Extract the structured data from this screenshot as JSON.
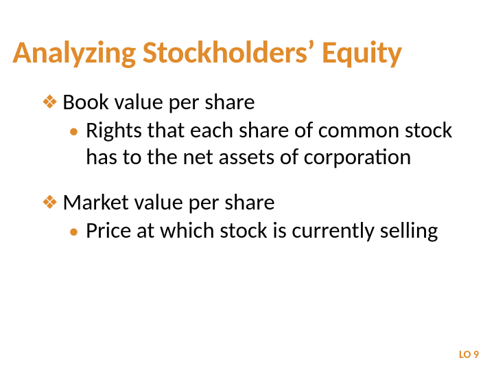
{
  "colors": {
    "accent": "#e08b2c",
    "text": "#000000",
    "background": "#ffffff"
  },
  "typography": {
    "title_fontsize": 46,
    "body_fontsize": 33,
    "footer_fontsize": 16,
    "title_weight": 700,
    "body_weight": 400,
    "footer_weight": 700,
    "font_family": "Calibri"
  },
  "title": "Analyzing Stockholders’ Equity",
  "items": [
    {
      "heading": "Book value per share",
      "sub": "Rights that each share of common stock has to the net assets of corporation"
    },
    {
      "heading": "Market value per share",
      "sub": "Price at which stock is currently selling"
    }
  ],
  "footer": "LO 9"
}
